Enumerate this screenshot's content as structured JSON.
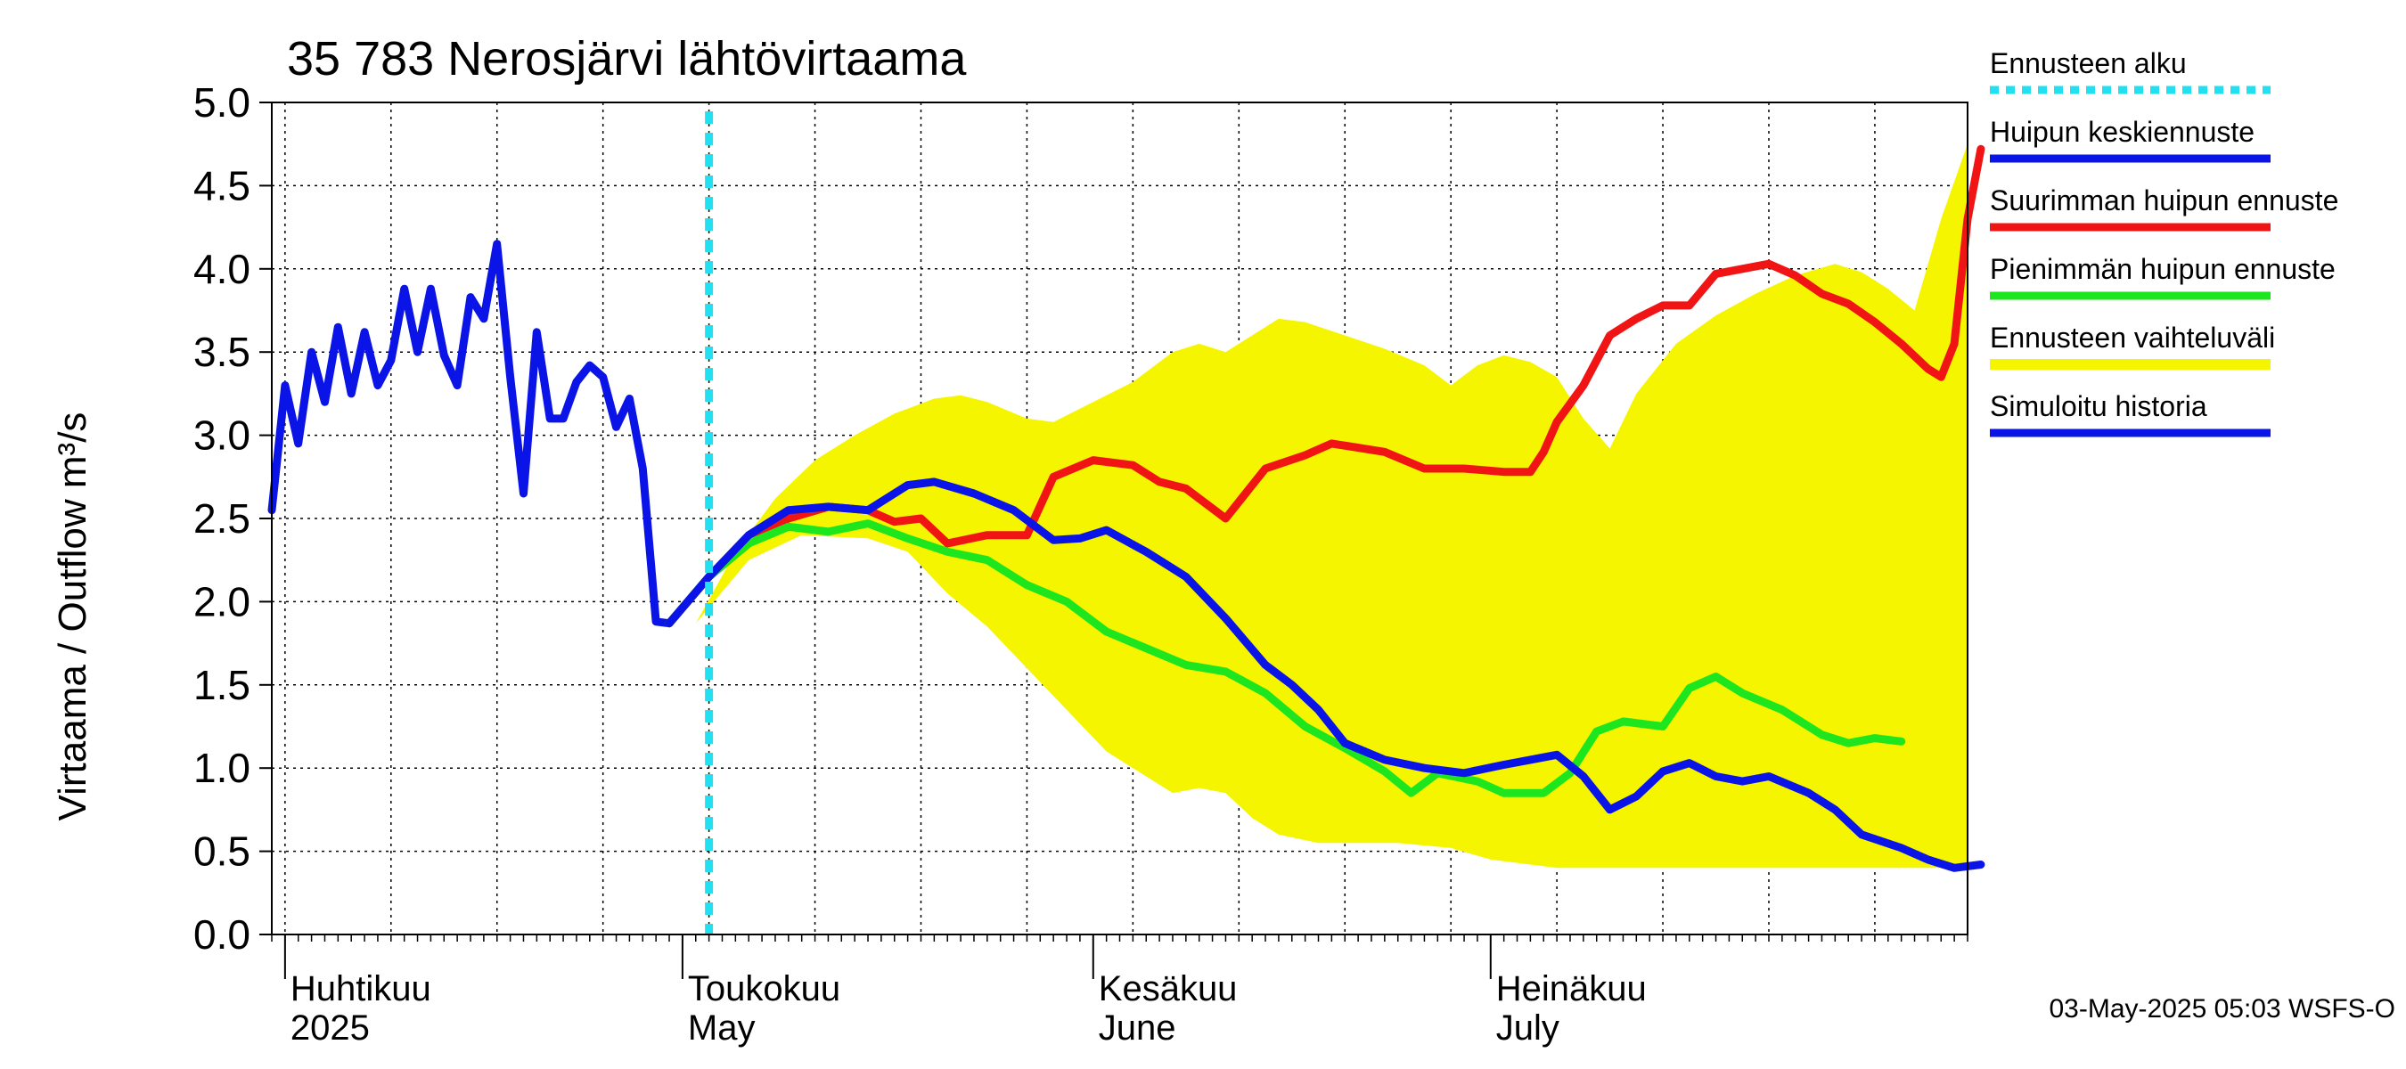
{
  "chart_data": {
    "type": "line",
    "title": "35 783 Nerosjärvi lähtövirtaama",
    "ylabel": "Virtaama / Outflow    m³/s",
    "ylim": [
      0,
      5
    ],
    "yticks": [
      "0.0",
      "0.5",
      "1.0",
      "1.5",
      "2.0",
      "2.5",
      "3.0",
      "3.5",
      "4.0",
      "4.5",
      "5.0"
    ],
    "xlim": [
      "2025-03-31",
      "2025-08-06"
    ],
    "month_labels": [
      {
        "fi": "Huhtikuu",
        "en": "2025",
        "date": "2025-04-01"
      },
      {
        "fi": "Toukokuu",
        "en": "May",
        "date": "2025-05-01"
      },
      {
        "fi": "Kesäkuu",
        "en": "June",
        "date": "2025-06-01"
      },
      {
        "fi": "Heinäkuu",
        "en": "July",
        "date": "2025-07-01"
      }
    ],
    "forecast_start": "2025-05-03",
    "footer": "03-May-2025 05:03 WSFS-O",
    "legend_position": "right",
    "legend": [
      {
        "label": "Ennusteen alku",
        "color": "#22e0f0",
        "style": "dashed"
      },
      {
        "label": "Huipun keskiennuste",
        "color": "#0a14e6",
        "style": "solid"
      },
      {
        "label": "Suurimman huipun ennuste",
        "color": "#f01414",
        "style": "solid"
      },
      {
        "label": "Pienimmän huipun ennuste",
        "color": "#1ee61e",
        "style": "solid"
      },
      {
        "label": "Ennusteen vaihteluväli",
        "color": "#f5f500",
        "style": "solid"
      },
      {
        "label": "Simuloitu historia",
        "color": "#0a14e6",
        "style": "solid"
      }
    ],
    "range_band": {
      "name": "Ennusteen vaihteluväli",
      "upper": [
        [
          "2025-05-02",
          1.87
        ],
        [
          "2025-05-05",
          2.3
        ],
        [
          "2025-05-08",
          2.62
        ],
        [
          "2025-05-11",
          2.85
        ],
        [
          "2025-05-14",
          3.0
        ],
        [
          "2025-05-17",
          3.13
        ],
        [
          "2025-05-20",
          3.22
        ],
        [
          "2025-05-22",
          3.24
        ],
        [
          "2025-05-24",
          3.2
        ],
        [
          "2025-05-27",
          3.1
        ],
        [
          "2025-05-29",
          3.08
        ],
        [
          "2025-06-01",
          3.2
        ],
        [
          "2025-06-04",
          3.32
        ],
        [
          "2025-06-07",
          3.5
        ],
        [
          "2025-06-09",
          3.55
        ],
        [
          "2025-06-11",
          3.5
        ],
        [
          "2025-06-13",
          3.6
        ],
        [
          "2025-06-15",
          3.7
        ],
        [
          "2025-06-17",
          3.68
        ],
        [
          "2025-06-20",
          3.6
        ],
        [
          "2025-06-23",
          3.52
        ],
        [
          "2025-06-26",
          3.42
        ],
        [
          "2025-06-28",
          3.3
        ],
        [
          "2025-06-30",
          3.42
        ],
        [
          "2025-07-02",
          3.48
        ],
        [
          "2025-07-04",
          3.44
        ],
        [
          "2025-07-06",
          3.35
        ],
        [
          "2025-07-08",
          3.1
        ],
        [
          "2025-07-10",
          2.92
        ],
        [
          "2025-07-12",
          3.25
        ],
        [
          "2025-07-15",
          3.55
        ],
        [
          "2025-07-18",
          3.72
        ],
        [
          "2025-07-21",
          3.85
        ],
        [
          "2025-07-24",
          3.96
        ],
        [
          "2025-07-27",
          4.03
        ],
        [
          "2025-07-29",
          3.98
        ],
        [
          "2025-07-31",
          3.88
        ],
        [
          "2025-08-02",
          3.75
        ],
        [
          "2025-08-04",
          4.3
        ],
        [
          "2025-08-06",
          4.75
        ]
      ],
      "lower": [
        [
          "2025-08-06",
          0.4
        ],
        [
          "2025-07-06",
          0.4
        ],
        [
          "2025-07-01",
          0.45
        ],
        [
          "2025-06-28",
          0.52
        ],
        [
          "2025-06-24",
          0.55
        ],
        [
          "2025-06-18",
          0.55
        ],
        [
          "2025-06-15",
          0.6
        ],
        [
          "2025-06-13",
          0.7
        ],
        [
          "2025-06-11",
          0.85
        ],
        [
          "2025-06-09",
          0.88
        ],
        [
          "2025-06-07",
          0.85
        ],
        [
          "2025-06-05",
          0.95
        ],
        [
          "2025-06-02",
          1.1
        ],
        [
          "2025-05-30",
          1.35
        ],
        [
          "2025-05-27",
          1.6
        ],
        [
          "2025-05-24",
          1.85
        ],
        [
          "2025-05-21",
          2.05
        ],
        [
          "2025-05-18",
          2.3
        ],
        [
          "2025-05-15",
          2.38
        ],
        [
          "2025-05-10",
          2.4
        ],
        [
          "2025-05-06",
          2.25
        ],
        [
          "2025-05-02",
          1.87
        ]
      ]
    },
    "series": [
      {
        "name": "Simuloitu historia",
        "color": "#0a14e6",
        "points": [
          [
            "2025-03-31",
            2.55
          ],
          [
            "2025-04-01",
            3.3
          ],
          [
            "2025-04-02",
            2.95
          ],
          [
            "2025-04-03",
            3.5
          ],
          [
            "2025-04-04",
            3.2
          ],
          [
            "2025-04-05",
            3.65
          ],
          [
            "2025-04-06",
            3.25
          ],
          [
            "2025-04-07",
            3.62
          ],
          [
            "2025-04-08",
            3.3
          ],
          [
            "2025-04-09",
            3.45
          ],
          [
            "2025-04-10",
            3.88
          ],
          [
            "2025-04-11",
            3.5
          ],
          [
            "2025-04-12",
            3.88
          ],
          [
            "2025-04-13",
            3.48
          ],
          [
            "2025-04-14",
            3.3
          ],
          [
            "2025-04-15",
            3.83
          ],
          [
            "2025-04-16",
            3.7
          ],
          [
            "2025-04-17",
            4.15
          ],
          [
            "2025-04-18",
            3.35
          ],
          [
            "2025-04-19",
            2.65
          ],
          [
            "2025-04-20",
            3.62
          ],
          [
            "2025-04-21",
            3.1
          ],
          [
            "2025-04-22",
            3.1
          ],
          [
            "2025-04-23",
            3.32
          ],
          [
            "2025-04-24",
            3.42
          ],
          [
            "2025-04-25",
            3.35
          ],
          [
            "2025-04-26",
            3.05
          ],
          [
            "2025-04-27",
            3.22
          ],
          [
            "2025-04-28",
            2.8
          ],
          [
            "2025-04-29",
            1.88
          ],
          [
            "2025-04-30",
            1.87
          ]
        ]
      },
      {
        "name": "Suurimman huipun ennuste",
        "color": "#f01414",
        "points": [
          [
            "2025-04-30",
            1.87
          ],
          [
            "2025-05-03",
            2.15
          ],
          [
            "2025-05-06",
            2.35
          ],
          [
            "2025-05-09",
            2.5
          ],
          [
            "2025-05-12",
            2.57
          ],
          [
            "2025-05-15",
            2.55
          ],
          [
            "2025-05-17",
            2.48
          ],
          [
            "2025-05-19",
            2.5
          ],
          [
            "2025-05-21",
            2.35
          ],
          [
            "2025-05-24",
            2.4
          ],
          [
            "2025-05-27",
            2.4
          ],
          [
            "2025-05-29",
            2.75
          ],
          [
            "2025-06-01",
            2.85
          ],
          [
            "2025-06-04",
            2.82
          ],
          [
            "2025-06-06",
            2.72
          ],
          [
            "2025-06-08",
            2.68
          ],
          [
            "2025-06-11",
            2.5
          ],
          [
            "2025-06-12",
            2.6
          ],
          [
            "2025-06-14",
            2.8
          ],
          [
            "2025-06-17",
            2.88
          ],
          [
            "2025-06-19",
            2.95
          ],
          [
            "2025-06-23",
            2.9
          ],
          [
            "2025-06-26",
            2.8
          ],
          [
            "2025-06-29",
            2.8
          ],
          [
            "2025-07-02",
            2.78
          ],
          [
            "2025-07-04",
            2.78
          ],
          [
            "2025-07-05",
            2.9
          ],
          [
            "2025-07-06",
            3.08
          ],
          [
            "2025-07-08",
            3.3
          ],
          [
            "2025-07-10",
            3.6
          ],
          [
            "2025-07-12",
            3.7
          ],
          [
            "2025-07-14",
            3.78
          ],
          [
            "2025-07-16",
            3.78
          ],
          [
            "2025-07-18",
            3.97
          ],
          [
            "2025-07-20",
            4.0
          ],
          [
            "2025-07-22",
            4.03
          ],
          [
            "2025-07-24",
            3.96
          ],
          [
            "2025-07-26",
            3.85
          ],
          [
            "2025-07-28",
            3.79
          ],
          [
            "2025-07-30",
            3.68
          ],
          [
            "2025-08-01",
            3.55
          ],
          [
            "2025-08-03",
            3.4
          ],
          [
            "2025-08-04",
            3.35
          ],
          [
            "2025-08-05",
            3.55
          ],
          [
            "2025-08-06",
            4.3
          ],
          [
            "2025-08-07",
            4.72
          ]
        ]
      },
      {
        "name": "Pienimmän huipun ennuste",
        "color": "#1ee61e",
        "points": [
          [
            "2025-04-30",
            1.87
          ],
          [
            "2025-05-03",
            2.15
          ],
          [
            "2025-05-06",
            2.35
          ],
          [
            "2025-05-09",
            2.45
          ],
          [
            "2025-05-12",
            2.42
          ],
          [
            "2025-05-15",
            2.47
          ],
          [
            "2025-05-18",
            2.38
          ],
          [
            "2025-05-21",
            2.3
          ],
          [
            "2025-05-24",
            2.25
          ],
          [
            "2025-05-27",
            2.1
          ],
          [
            "2025-05-30",
            2.0
          ],
          [
            "2025-06-02",
            1.82
          ],
          [
            "2025-06-05",
            1.72
          ],
          [
            "2025-06-08",
            1.62
          ],
          [
            "2025-06-11",
            1.58
          ],
          [
            "2025-06-14",
            1.45
          ],
          [
            "2025-06-17",
            1.25
          ],
          [
            "2025-06-20",
            1.12
          ],
          [
            "2025-06-23",
            0.98
          ],
          [
            "2025-06-25",
            0.85
          ],
          [
            "2025-06-27",
            0.97
          ],
          [
            "2025-06-30",
            0.92
          ],
          [
            "2025-07-02",
            0.85
          ],
          [
            "2025-07-05",
            0.85
          ],
          [
            "2025-07-07",
            0.97
          ],
          [
            "2025-07-09",
            1.22
          ],
          [
            "2025-07-11",
            1.28
          ],
          [
            "2025-07-14",
            1.25
          ],
          [
            "2025-07-16",
            1.48
          ],
          [
            "2025-07-18",
            1.55
          ],
          [
            "2025-07-20",
            1.45
          ],
          [
            "2025-07-23",
            1.35
          ],
          [
            "2025-07-26",
            1.2
          ],
          [
            "2025-07-28",
            1.15
          ],
          [
            "2025-07-30",
            1.18
          ],
          [
            "2025-08-01",
            1.16
          ]
        ]
      },
      {
        "name": "Huipun keskiennuste",
        "color": "#0a14e6",
        "points": [
          [
            "2025-04-30",
            1.87
          ],
          [
            "2025-05-03",
            2.15
          ],
          [
            "2025-05-06",
            2.4
          ],
          [
            "2025-05-09",
            2.55
          ],
          [
            "2025-05-12",
            2.57
          ],
          [
            "2025-05-15",
            2.55
          ],
          [
            "2025-05-18",
            2.7
          ],
          [
            "2025-05-20",
            2.72
          ],
          [
            "2025-05-23",
            2.65
          ],
          [
            "2025-05-26",
            2.55
          ],
          [
            "2025-05-29",
            2.37
          ],
          [
            "2025-05-31",
            2.38
          ],
          [
            "2025-06-02",
            2.43
          ],
          [
            "2025-06-05",
            2.3
          ],
          [
            "2025-06-08",
            2.15
          ],
          [
            "2025-06-11",
            1.9
          ],
          [
            "2025-06-14",
            1.62
          ],
          [
            "2025-06-16",
            1.5
          ],
          [
            "2025-06-18",
            1.35
          ],
          [
            "2025-06-20",
            1.15
          ],
          [
            "2025-06-23",
            1.05
          ],
          [
            "2025-06-26",
            1.0
          ],
          [
            "2025-06-29",
            0.97
          ],
          [
            "2025-07-02",
            1.02
          ],
          [
            "2025-07-04",
            1.05
          ],
          [
            "2025-07-06",
            1.08
          ],
          [
            "2025-07-08",
            0.95
          ],
          [
            "2025-07-10",
            0.75
          ],
          [
            "2025-07-12",
            0.83
          ],
          [
            "2025-07-14",
            0.98
          ],
          [
            "2025-07-16",
            1.03
          ],
          [
            "2025-07-18",
            0.95
          ],
          [
            "2025-07-20",
            0.92
          ],
          [
            "2025-07-22",
            0.95
          ],
          [
            "2025-07-25",
            0.85
          ],
          [
            "2025-07-27",
            0.75
          ],
          [
            "2025-07-29",
            0.6
          ],
          [
            "2025-08-01",
            0.52
          ],
          [
            "2025-08-03",
            0.45
          ],
          [
            "2025-08-05",
            0.4
          ],
          [
            "2025-08-07",
            0.42
          ]
        ]
      }
    ]
  }
}
